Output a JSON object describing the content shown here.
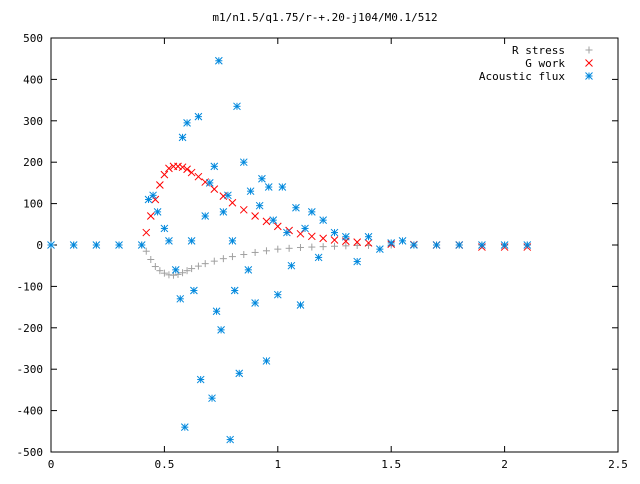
{
  "chart_data": {
    "type": "scatter",
    "title": "m1/n1.5/q1.75/r-+.20-j104/M0.1/512",
    "xlabel": "",
    "ylabel": "",
    "xlim": [
      0,
      2.5
    ],
    "ylim": [
      -500,
      500
    ],
    "x_ticks": [
      0,
      0.5,
      1,
      1.5,
      2,
      2.5
    ],
    "x_tick_labels": [
      "0",
      "0.5",
      "1",
      "1.5",
      "2",
      "2.5"
    ],
    "y_ticks": [
      -500,
      -400,
      -300,
      -200,
      -100,
      0,
      100,
      200,
      300,
      400,
      500
    ],
    "y_tick_labels": [
      "-500",
      "-400",
      "-300",
      "-200",
      "-100",
      "0",
      "100",
      "200",
      "300",
      "400",
      "500"
    ],
    "grid": false,
    "legend_position": "top-right",
    "series": [
      {
        "name": "R stress",
        "marker": "plus",
        "color": "#a0a0a0",
        "x": [
          0,
          0.1,
          0.2,
          0.3,
          0.4,
          0.42,
          0.44,
          0.46,
          0.48,
          0.5,
          0.52,
          0.54,
          0.56,
          0.58,
          0.6,
          0.62,
          0.65,
          0.68,
          0.72,
          0.76,
          0.8,
          0.85,
          0.9,
          0.95,
          1.0,
          1.05,
          1.1,
          1.15,
          1.2,
          1.25,
          1.3,
          1.35,
          1.4,
          1.5,
          1.6,
          1.7,
          1.8,
          1.9,
          2.0,
          2.1
        ],
        "y": [
          0,
          0,
          0,
          0,
          0,
          -15,
          -35,
          -52,
          -62,
          -68,
          -72,
          -73,
          -71,
          -67,
          -62,
          -57,
          -51,
          -45,
          -39,
          -33,
          -28,
          -23,
          -18,
          -14,
          -10,
          -8,
          -6,
          -5,
          -4,
          -3,
          -2,
          -1,
          -1,
          0,
          0,
          0,
          0,
          0,
          0,
          0
        ]
      },
      {
        "name": "G work",
        "marker": "cross",
        "color": "#ff0000",
        "x": [
          0.42,
          0.44,
          0.46,
          0.48,
          0.5,
          0.52,
          0.54,
          0.56,
          0.58,
          0.6,
          0.62,
          0.65,
          0.68,
          0.72,
          0.76,
          0.8,
          0.85,
          0.9,
          0.95,
          1.0,
          1.05,
          1.1,
          1.15,
          1.2,
          1.25,
          1.3,
          1.35,
          1.4,
          1.5,
          1.6,
          1.7,
          1.8,
          1.9,
          2.0,
          2.1
        ],
        "y": [
          30,
          70,
          110,
          145,
          170,
          185,
          190,
          190,
          188,
          183,
          175,
          165,
          152,
          135,
          118,
          102,
          85,
          70,
          57,
          45,
          35,
          27,
          21,
          16,
          12,
          9,
          7,
          5,
          2,
          1,
          0,
          0,
          -5,
          -5,
          -5
        ]
      },
      {
        "name": "Acoustic flux",
        "marker": "star",
        "color": "#0088dd",
        "x": [
          0,
          0.1,
          0.2,
          0.3,
          0.4,
          0.43,
          0.45,
          0.47,
          0.5,
          0.52,
          0.55,
          0.57,
          0.58,
          0.59,
          0.6,
          0.62,
          0.63,
          0.65,
          0.66,
          0.68,
          0.7,
          0.71,
          0.72,
          0.73,
          0.74,
          0.75,
          0.76,
          0.78,
          0.79,
          0.8,
          0.81,
          0.82,
          0.83,
          0.85,
          0.87,
          0.88,
          0.9,
          0.92,
          0.93,
          0.95,
          0.96,
          0.98,
          1.0,
          1.02,
          1.04,
          1.06,
          1.08,
          1.1,
          1.12,
          1.15,
          1.18,
          1.2,
          1.25,
          1.3,
          1.35,
          1.4,
          1.45,
          1.5,
          1.55,
          1.6,
          1.7,
          1.8,
          1.9,
          2.0,
          2.1
        ],
        "y": [
          0,
          0,
          0,
          0,
          0,
          110,
          120,
          80,
          40,
          10,
          -60,
          -130,
          260,
          -440,
          295,
          10,
          -110,
          310,
          -325,
          70,
          150,
          -370,
          190,
          -160,
          445,
          -205,
          80,
          120,
          -470,
          10,
          -110,
          335,
          -310,
          200,
          -60,
          130,
          -140,
          95,
          160,
          -280,
          140,
          60,
          -120,
          140,
          30,
          -50,
          90,
          -145,
          40,
          80,
          -30,
          60,
          30,
          20,
          -40,
          20,
          -10,
          5,
          10,
          0,
          0,
          0,
          0,
          0,
          0
        ]
      }
    ]
  }
}
